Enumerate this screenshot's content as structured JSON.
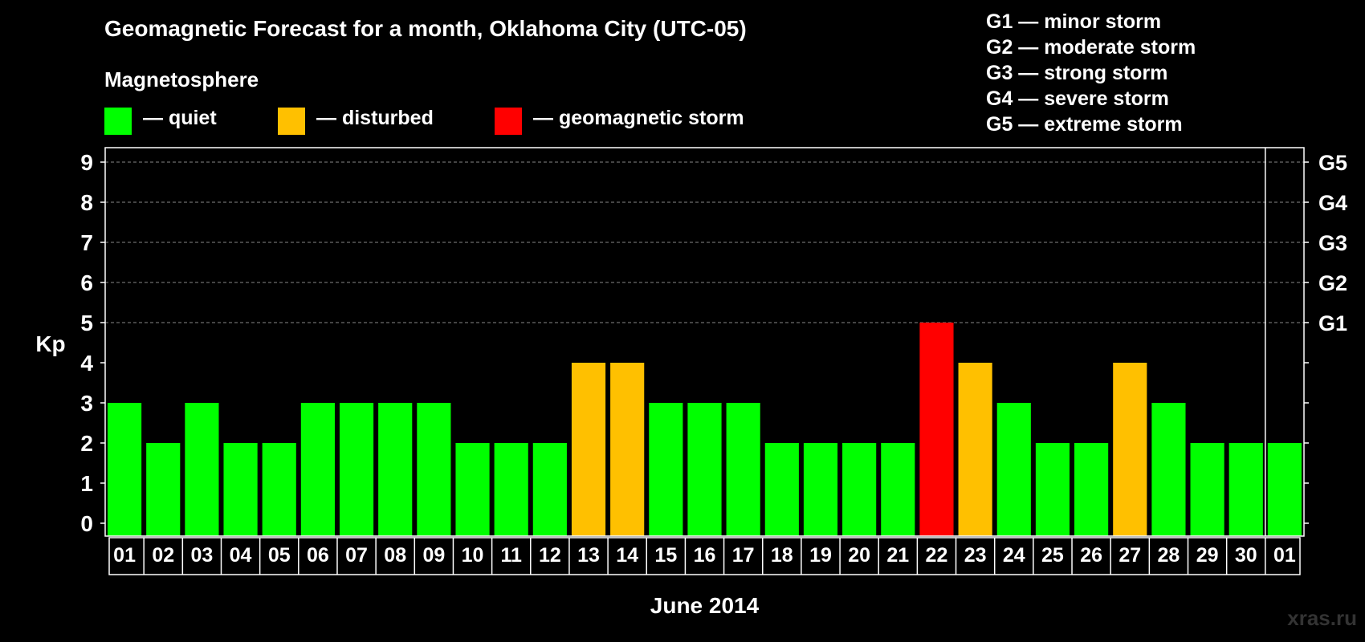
{
  "title": "Geomagnetic Forecast for a month, Oklahoma City (UTC-05)",
  "legend": {
    "heading": "Magnetosphere",
    "items": [
      {
        "label": "— quiet",
        "color": "#00ff00"
      },
      {
        "label": "— disturbed",
        "color": "#ffc000"
      },
      {
        "label": "— geomagnetic storm",
        "color": "#ff0000"
      }
    ]
  },
  "storm_scale": [
    "G1 — minor storm",
    "G2 — moderate storm",
    "G3 — strong storm",
    "G4 — severe storm",
    "G5 — extreme storm"
  ],
  "watermark": "xras.ru",
  "colors": {
    "quiet": "#00ff00",
    "disturbed": "#ffc000",
    "storm": "#ff0000",
    "background": "#000000",
    "axis": "#ffffff"
  },
  "chart_data": {
    "type": "bar",
    "title": "Geomagnetic Forecast for a month, Oklahoma City (UTC-05)",
    "xlabel": "June 2014",
    "ylabel": "Kp",
    "ylim": [
      0,
      9
    ],
    "yticks": [
      "0",
      "1",
      "2",
      "3",
      "4",
      "5",
      "6",
      "7",
      "8",
      "9"
    ],
    "right_ticks": [
      {
        "value": 5,
        "label": "G1"
      },
      {
        "value": 6,
        "label": "G2"
      },
      {
        "value": 7,
        "label": "G3"
      },
      {
        "value": 8,
        "label": "G4"
      },
      {
        "value": 9,
        "label": "G5"
      }
    ],
    "dashed_gridlines_at": [
      5,
      6,
      7,
      8,
      9
    ],
    "categories": [
      "01",
      "02",
      "03",
      "04",
      "05",
      "06",
      "07",
      "08",
      "09",
      "10",
      "11",
      "12",
      "13",
      "14",
      "15",
      "16",
      "17",
      "18",
      "19",
      "20",
      "21",
      "22",
      "23",
      "24",
      "25",
      "26",
      "27",
      "28",
      "29",
      "30",
      "01"
    ],
    "values": [
      3,
      2,
      3,
      2,
      2,
      3,
      3,
      3,
      3,
      2,
      2,
      2,
      4,
      4,
      3,
      3,
      3,
      2,
      2,
      2,
      2,
      5,
      4,
      3,
      2,
      2,
      4,
      3,
      2,
      2,
      2
    ],
    "status": [
      "quiet",
      "quiet",
      "quiet",
      "quiet",
      "quiet",
      "quiet",
      "quiet",
      "quiet",
      "quiet",
      "quiet",
      "quiet",
      "quiet",
      "disturbed",
      "disturbed",
      "quiet",
      "quiet",
      "quiet",
      "quiet",
      "quiet",
      "quiet",
      "quiet",
      "storm",
      "disturbed",
      "quiet",
      "quiet",
      "quiet",
      "disturbed",
      "quiet",
      "quiet",
      "quiet",
      "quiet"
    ],
    "separator_before_index": 30
  }
}
